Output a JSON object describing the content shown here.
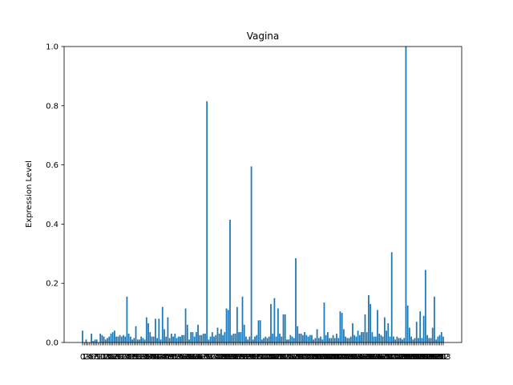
{
  "chart_data": {
    "type": "bar",
    "title": "Vagina",
    "xlabel": "",
    "ylabel": "Expression Level",
    "ylim": [
      0,
      1.0
    ],
    "yticks": [
      "0.0",
      "0.2",
      "0.4",
      "0.6",
      "0.8",
      "1.0"
    ],
    "grid": false,
    "bar_color": "#1f77b4",
    "categories_note": "x-axis shows a dense run of overlapping integer category labels (0..~199) that are illegible",
    "series": [
      {
        "values": [
          0.04,
          0.0,
          0.01,
          0.0,
          0.0,
          0.03,
          0.005,
          0.01,
          0.01,
          0.0,
          0.03,
          0.025,
          0.02,
          0.01,
          0.015,
          0.02,
          0.03,
          0.035,
          0.04,
          0.02,
          0.02,
          0.025,
          0.02,
          0.025,
          0.02,
          0.155,
          0.03,
          0.02,
          0.01,
          0.015,
          0.055,
          0.01,
          0.01,
          0.02,
          0.015,
          0.01,
          0.085,
          0.065,
          0.035,
          0.02,
          0.02,
          0.08,
          0.015,
          0.08,
          0.01,
          0.12,
          0.045,
          0.02,
          0.085,
          0.015,
          0.03,
          0.02,
          0.03,
          0.015,
          0.02,
          0.02,
          0.025,
          0.025,
          0.115,
          0.06,
          0.01,
          0.035,
          0.035,
          0.02,
          0.035,
          0.06,
          0.025,
          0.025,
          0.03,
          0.03,
          0.815,
          0.01,
          0.02,
          0.035,
          0.02,
          0.025,
          0.05,
          0.03,
          0.045,
          0.025,
          0.035,
          0.115,
          0.11,
          0.415,
          0.025,
          0.03,
          0.03,
          0.12,
          0.035,
          0.035,
          0.155,
          0.06,
          0.02,
          0.01,
          0.02,
          0.595,
          0.01,
          0.02,
          0.025,
          0.075,
          0.075,
          0.01,
          0.015,
          0.02,
          0.015,
          0.02,
          0.13,
          0.03,
          0.15,
          0.02,
          0.115,
          0.03,
          0.02,
          0.095,
          0.095,
          0.01,
          0.01,
          0.025,
          0.02,
          0.015,
          0.285,
          0.055,
          0.03,
          0.03,
          0.025,
          0.035,
          0.025,
          0.02,
          0.025,
          0.025,
          0.01,
          0.015,
          0.045,
          0.015,
          0.02,
          0.01,
          0.135,
          0.025,
          0.035,
          0.015,
          0.015,
          0.025,
          0.015,
          0.03,
          0.015,
          0.105,
          0.1,
          0.045,
          0.02,
          0.015,
          0.015,
          0.02,
          0.065,
          0.025,
          0.02,
          0.04,
          0.025,
          0.035,
          0.035,
          0.095,
          0.035,
          0.16,
          0.13,
          0.035,
          0.02,
          0.02,
          0.11,
          0.03,
          0.025,
          0.02,
          0.085,
          0.04,
          0.065,
          0.02,
          0.305,
          0.02,
          0.01,
          0.02,
          0.015,
          0.015,
          0.01,
          0.015,
          1.0,
          0.125,
          0.05,
          0.02,
          0.01,
          0.015,
          0.07,
          0.015,
          0.105,
          0.015,
          0.09,
          0.245,
          0.025,
          0.015,
          0.015,
          0.05,
          0.155,
          0.01,
          0.02,
          0.025,
          0.035,
          0.02
        ]
      }
    ]
  }
}
